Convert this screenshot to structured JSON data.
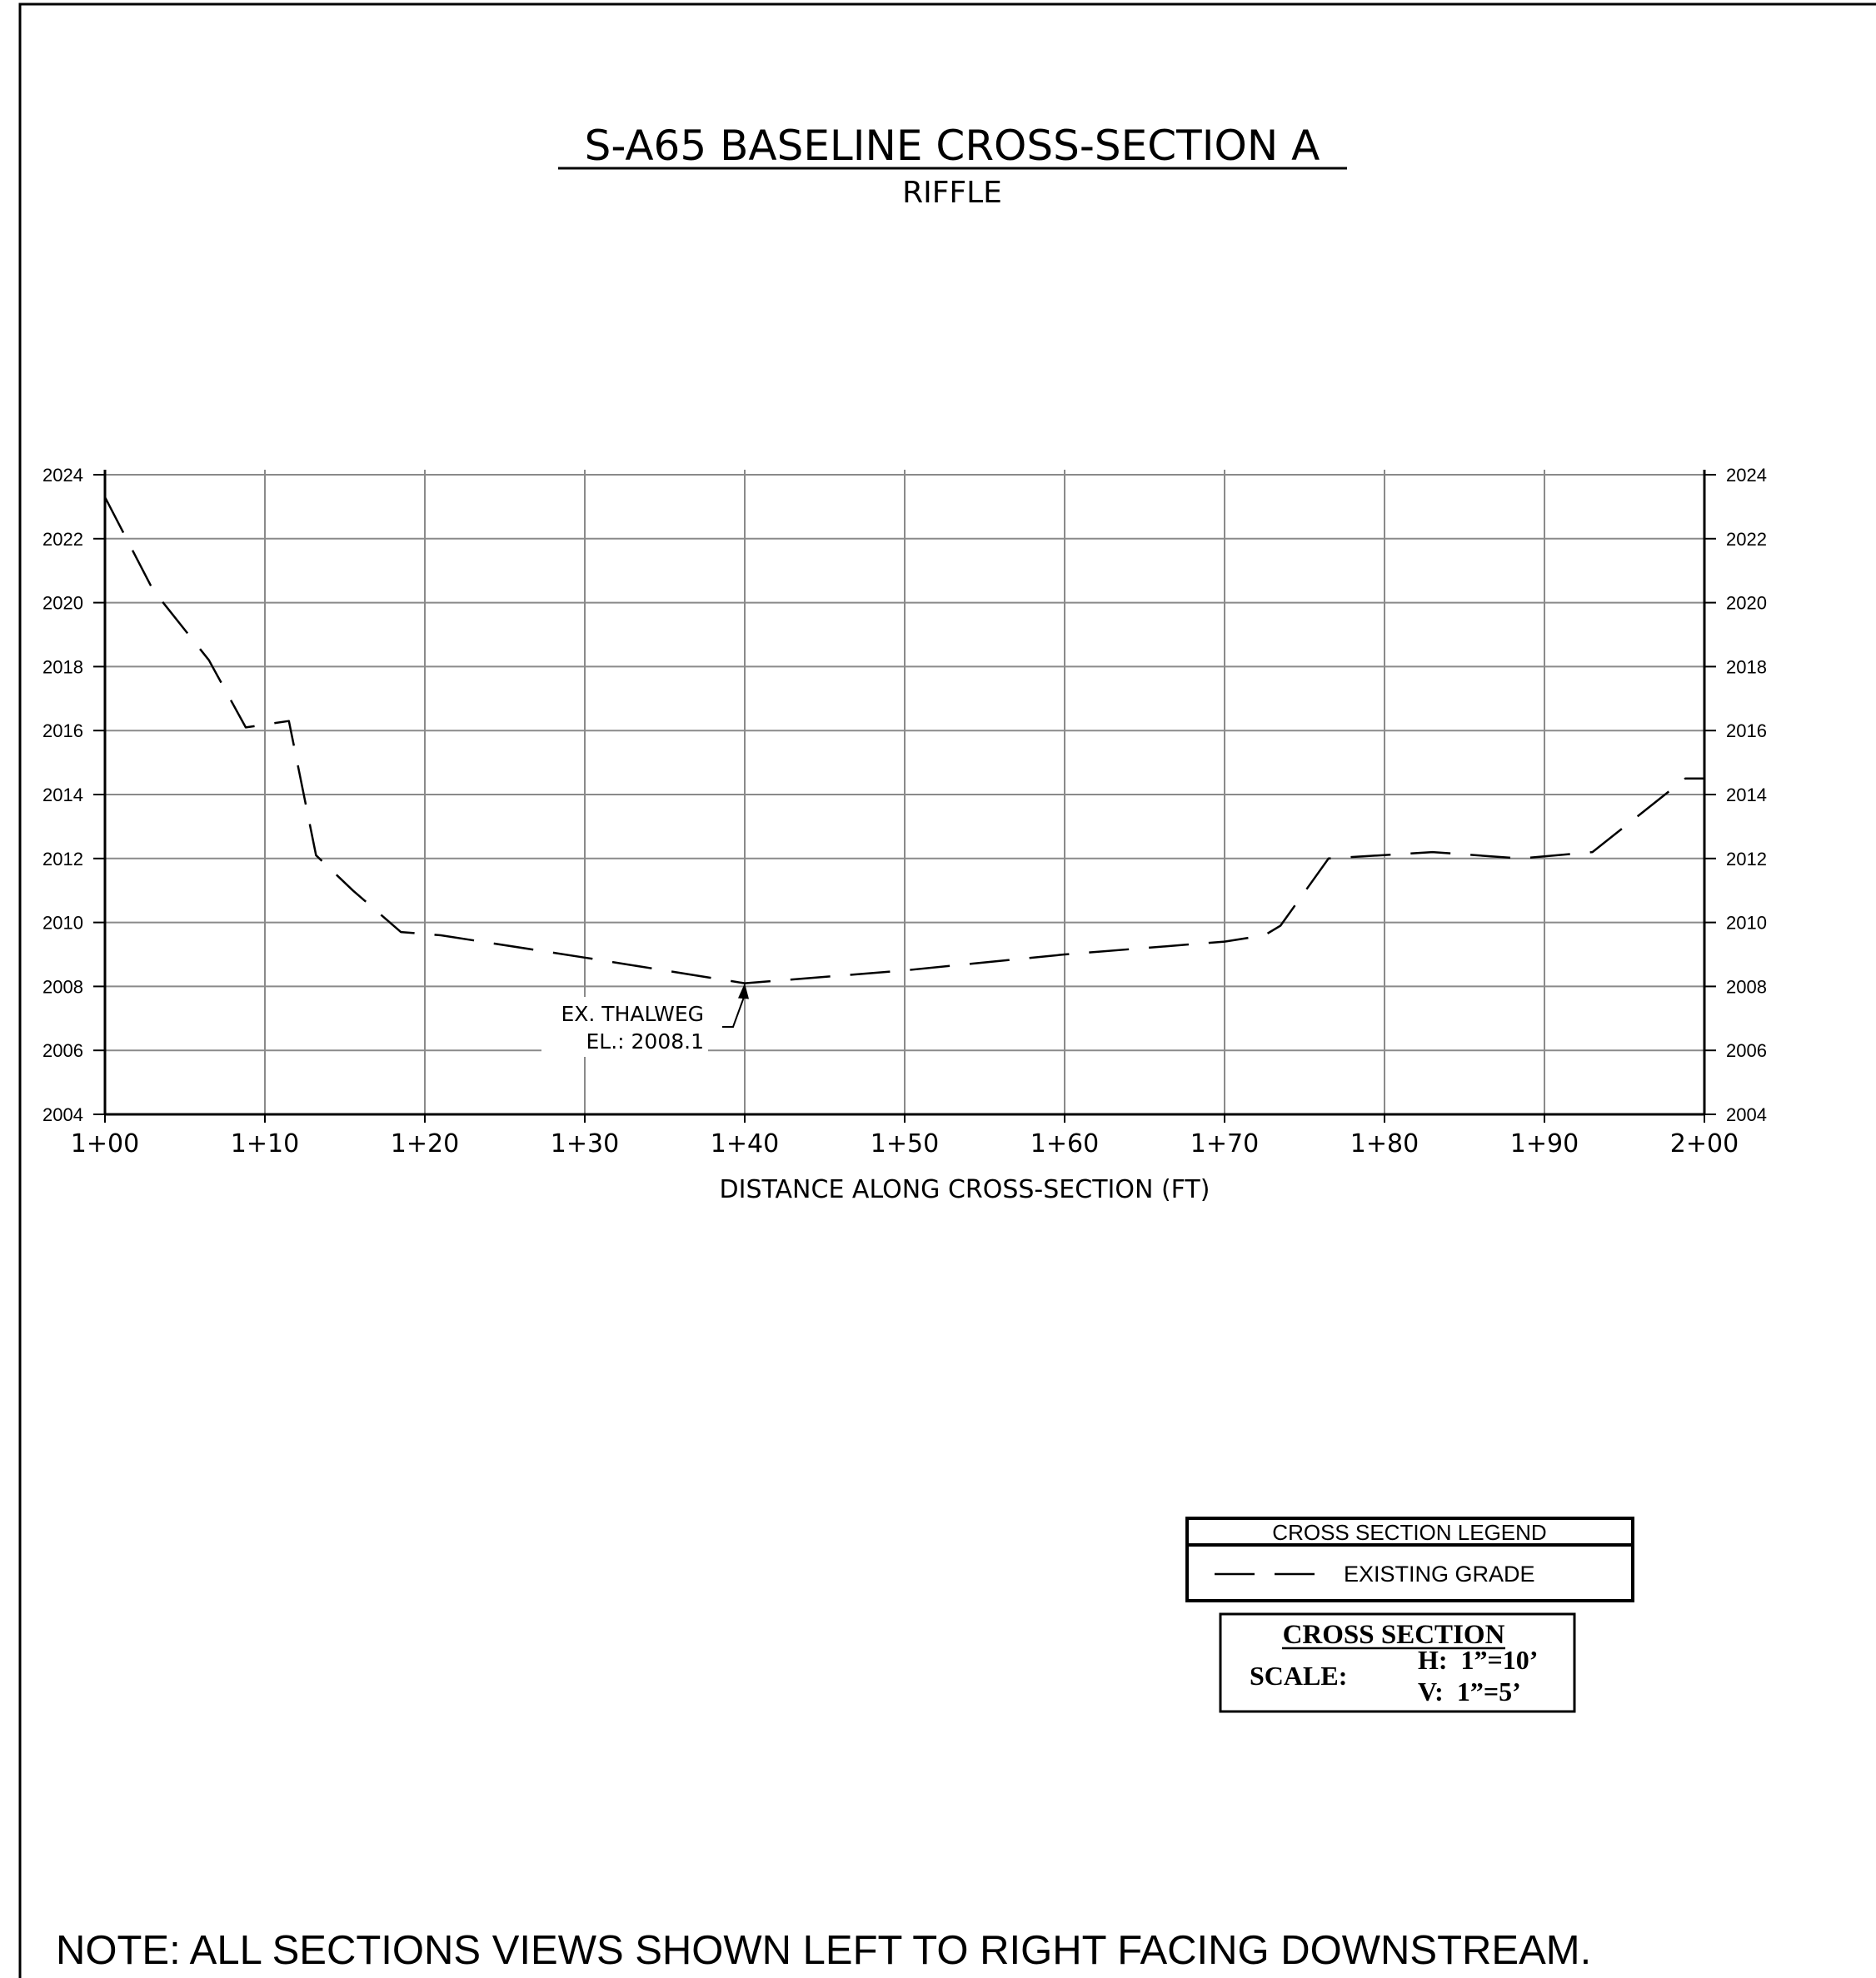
{
  "chart_data": {
    "type": "line",
    "title": "S-A65 BASELINE CROSS-SECTION A",
    "subtitle": "RIFFLE",
    "xlabel": "DISTANCE ALONG CROSS-SECTION (FT)",
    "ylabel": "",
    "x_unit": "ft",
    "xlim": [
      100,
      200
    ],
    "ylim": [
      2004,
      2024
    ],
    "grid": true,
    "x_ticks": [
      {
        "value": 100,
        "label": "1+00"
      },
      {
        "value": 110,
        "label": "1+10"
      },
      {
        "value": 120,
        "label": "1+20"
      },
      {
        "value": 130,
        "label": "1+30"
      },
      {
        "value": 140,
        "label": "1+40"
      },
      {
        "value": 150,
        "label": "1+50"
      },
      {
        "value": 160,
        "label": "1+60"
      },
      {
        "value": 170,
        "label": "1+70"
      },
      {
        "value": 180,
        "label": "1+80"
      },
      {
        "value": 190,
        "label": "1+90"
      },
      {
        "value": 200,
        "label": "2+00"
      }
    ],
    "y_ticks": [
      "2004",
      "2006",
      "2008",
      "2010",
      "2012",
      "2014",
      "2016",
      "2018",
      "2020",
      "2022",
      "2024"
    ],
    "series": [
      {
        "name": "EXISTING GRADE",
        "line_style": "dashed",
        "color": "#000000",
        "points": [
          [
            100.0,
            2023.3
          ],
          [
            103.0,
            2020.4
          ],
          [
            106.5,
            2018.2
          ],
          [
            108.8,
            2016.1
          ],
          [
            111.5,
            2016.3
          ],
          [
            113.2,
            2012.1
          ],
          [
            115.5,
            2011.0
          ],
          [
            118.5,
            2009.7
          ],
          [
            121.0,
            2009.6
          ],
          [
            130.0,
            2008.9
          ],
          [
            140.0,
            2008.1
          ],
          [
            150.0,
            2008.5
          ],
          [
            160.0,
            2009.0
          ],
          [
            170.0,
            2009.4
          ],
          [
            172.5,
            2009.6
          ],
          [
            173.5,
            2009.9
          ],
          [
            176.5,
            2012.0
          ],
          [
            183.0,
            2012.2
          ],
          [
            188.5,
            2012.0
          ],
          [
            193.0,
            2012.2
          ],
          [
            198.8,
            2014.5
          ],
          [
            200.0,
            2014.5
          ]
        ]
      }
    ],
    "annotations": [
      {
        "label_lines": [
          "EX. THALWEG",
          "EL.: 2008.1"
        ],
        "x": 140,
        "y": 2008.1
      }
    ]
  },
  "legend": {
    "title": "CROSS SECTION LEGEND",
    "items": [
      {
        "label": "EXISTING GRADE",
        "line_style": "dashed"
      }
    ]
  },
  "scale_box": {
    "title": "CROSS SECTION",
    "scale_label": "SCALE:",
    "h": "H:  1”=10’",
    "v": "V:  1”=5’"
  },
  "note": "NOTE: ALL SECTIONS VIEWS SHOWN LEFT TO RIGHT FACING DOWNSTREAM."
}
